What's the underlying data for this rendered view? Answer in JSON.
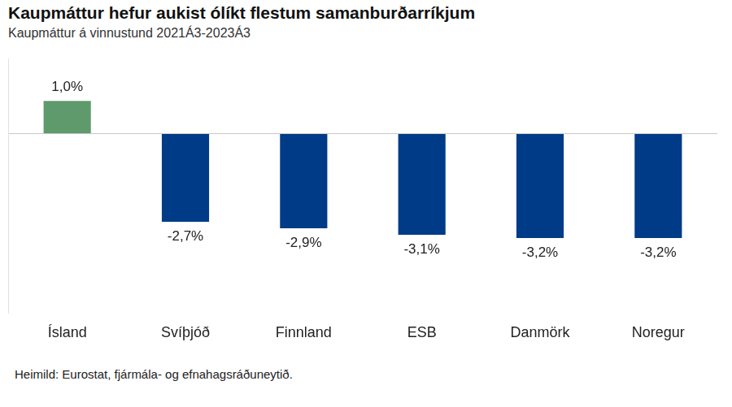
{
  "chart_data": {
    "type": "bar",
    "title": "Kaupmáttur hefur aukist ólíkt flestum samanburðarríkjum",
    "subtitle": "Kaupmáttur á vinnustund 2021Á3-2023Á3",
    "source": "Heimild: Eurostat, fjármála- og efnahagsráðuneytið.",
    "categories": [
      "Ísland",
      "Svíþjóð",
      "Finnland",
      "ESB",
      "Danmörk",
      "Noregur"
    ],
    "values": [
      1.0,
      -2.7,
      -2.9,
      -3.1,
      -3.2,
      -3.2
    ],
    "value_labels": [
      "1,0%",
      "-2,7%",
      "-2,9%",
      "-3,1%",
      "-3,2%",
      "-3,2%"
    ],
    "colors": [
      "#5e9a6c",
      "#003b87",
      "#003b87",
      "#003b87",
      "#003b87",
      "#003b87"
    ],
    "ylim": [
      -5.5,
      2.3
    ],
    "yticks": [
      0
    ],
    "grid": true,
    "data_labels": true,
    "tick_labels": "x"
  }
}
